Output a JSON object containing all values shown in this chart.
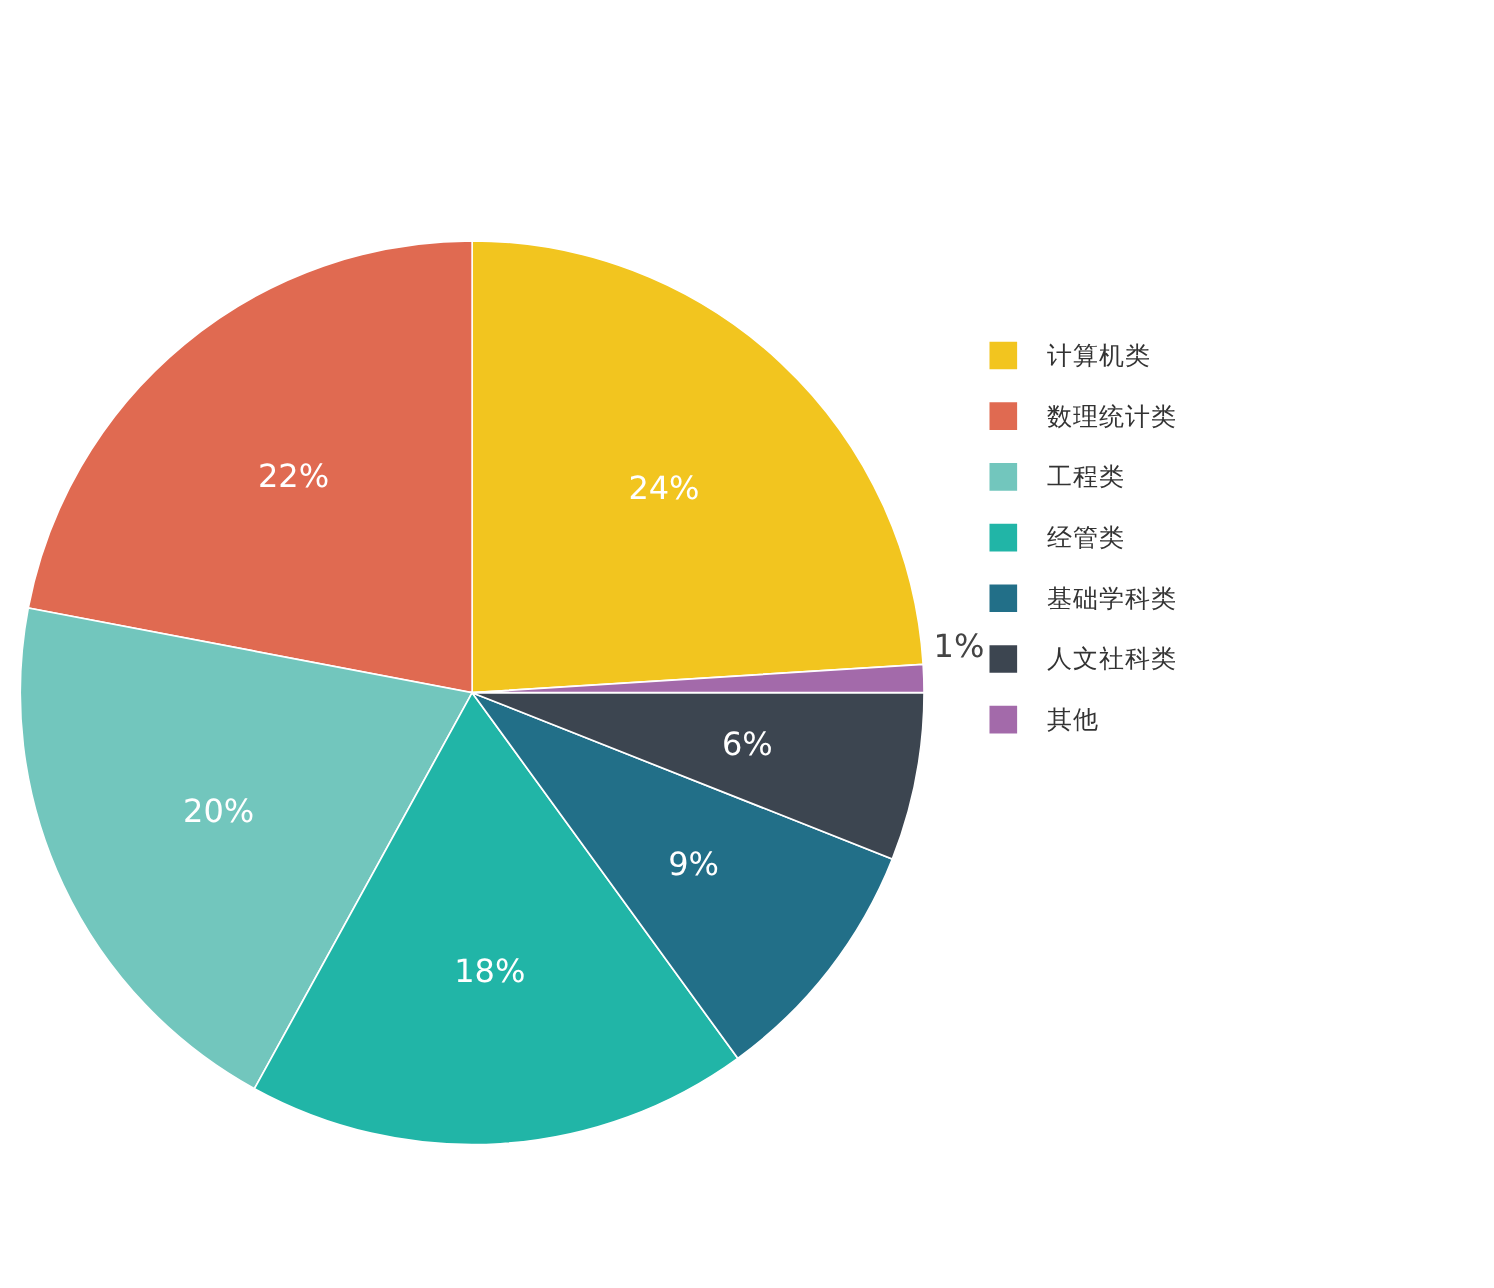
{
  "chart_data": {
    "type": "pie",
    "categories": [
      "计算机类",
      "数理统计类",
      "工程类",
      "经管类",
      "基础学科类",
      "人文社科类",
      "其他"
    ],
    "values": [
      24,
      22,
      20,
      18,
      9,
      6,
      1
    ],
    "colors": [
      "#f2c51f",
      "#e06a51",
      "#72c6bd",
      "#21b5a7",
      "#226f88",
      "#3c4550",
      "#a36aaa"
    ],
    "value_labels": [
      "24%",
      "22%",
      "20%",
      "18%",
      "9%",
      "6%",
      "1%"
    ],
    "legend": "top right"
  }
}
